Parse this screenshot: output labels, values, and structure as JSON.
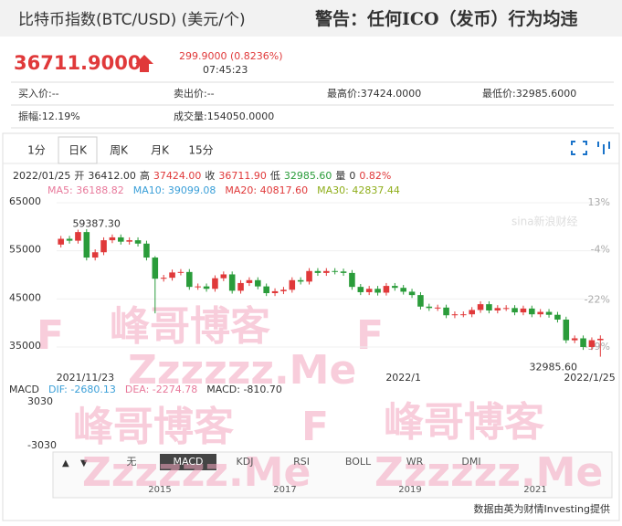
{
  "header": {
    "title": "比特币指数(BTC/USD) (美元/个)",
    "warning": "警告：任何ICO（发币）行为均违"
  },
  "quote": {
    "price": "36711.9000",
    "change": "299.9000 (0.8236%)",
    "time": "07:45:23"
  },
  "stats": [
    [
      "买入价:--",
      "卖出价:--",
      "最高价:37424.0000",
      "最低价:32985.6000"
    ],
    [
      "振幅:12.19%",
      "成交量:154050.0000"
    ]
  ],
  "tabs": [
    "1分",
    "日K",
    "周K",
    "月K",
    "15分"
  ],
  "info": [
    [
      "2022/01/25",
      ""
    ],
    [
      "开",
      "36412.00"
    ],
    [
      "高",
      "37424.00"
    ],
    [
      "收",
      "36711.90"
    ],
    [
      "低",
      "32985.60"
    ],
    [
      "量",
      "0"
    ],
    [
      "",
      "0.82%"
    ]
  ],
  "ma": [
    {
      "label": "MA5: 36188.82",
      "color": "#e8799b"
    },
    {
      "label": "MA10: 39099.08",
      "color": "#3a9fd8"
    },
    {
      "label": "MA20: 40817.60",
      "color": "#e0393a"
    },
    {
      "label": "MA30: 42837.44",
      "color": "#8fae1b"
    }
  ],
  "macd": [
    {
      "label": "MACD",
      "color": "#333"
    },
    {
      "label": "DIF: -2680.13",
      "color": "#3a9fd8"
    },
    {
      "label": "DEA: -2274.78",
      "color": "#e8799b"
    },
    {
      "label": "MACD: -810.70",
      "color": "#333"
    }
  ],
  "macd_ticks": [
    "3030",
    "-3030"
  ],
  "indicators": [
    "无",
    "MACD",
    "KDJ",
    "RSI",
    "BOLL",
    "WR",
    "DMI"
  ],
  "years": [
    "2015",
    "2017",
    "2019",
    "2021"
  ],
  "footer": "数据由英为财情Investing提供",
  "watermarks": [
    "峰哥博客",
    "Zzzzzz.Me",
    "F"
  ],
  "chart_data": {
    "type": "candlestick",
    "dates": [
      {
        "index": 0,
        "label": "2021/11/23"
      },
      {
        "index": 39,
        "label": "2022/1"
      },
      {
        "index": 63,
        "label": "2022/1/25"
      }
    ],
    "open": [
      56300,
      57500,
      57100,
      58900,
      53600,
      54700,
      57200,
      57800,
      56900,
      57200,
      56500,
      53600,
      49200,
      49400,
      50500,
      50600,
      47500,
      47600,
      47100,
      49300,
      50100,
      46700,
      48300,
      48900,
      47600,
      46200,
      46600,
      46900,
      48900,
      48600,
      50800,
      50400,
      50800,
      50700,
      50400,
      47500,
      46400,
      47100,
      46300,
      47700,
      47300,
      46500,
      45800,
      43400,
      43100,
      43200,
      41600,
      41800,
      41800,
      42700,
      43900,
      42600,
      43100,
      43100,
      42200,
      43000,
      41800,
      42300,
      41700,
      40700,
      36400,
      36800,
      35000,
      36412
    ],
    "close": [
      57500,
      57100,
      58900,
      53600,
      54700,
      57200,
      57800,
      56900,
      57200,
      56500,
      53600,
      49200,
      49400,
      50500,
      50600,
      47500,
      47600,
      47100,
      49300,
      50100,
      46700,
      48300,
      48900,
      47600,
      46200,
      46600,
      46900,
      48900,
      48600,
      50800,
      50400,
      50800,
      50700,
      50400,
      47500,
      46400,
      47100,
      46300,
      47700,
      47300,
      46500,
      45800,
      43400,
      43100,
      43200,
      41600,
      41800,
      41800,
      42700,
      43900,
      42600,
      43100,
      43100,
      42200,
      43000,
      41800,
      42300,
      41700,
      40700,
      36400,
      36800,
      35000,
      36412,
      36711.9
    ],
    "high": [
      58100,
      58100,
      59387.3,
      59500,
      55300,
      57800,
      58400,
      58400,
      57800,
      57800,
      57100,
      53900,
      50000,
      51100,
      51200,
      51200,
      48200,
      48200,
      49900,
      50700,
      50700,
      48900,
      49500,
      49500,
      48200,
      47200,
      47500,
      49500,
      49500,
      51400,
      51400,
      51400,
      51400,
      51300,
      51000,
      48100,
      47700,
      47700,
      48300,
      48300,
      47900,
      47100,
      46400,
      44000,
      43800,
      43800,
      42400,
      42400,
      43300,
      44500,
      44500,
      43700,
      43700,
      43700,
      43600,
      43600,
      42900,
      42900,
      42300,
      41300,
      37400,
      37400,
      37000,
      37424
    ],
    "low": [
      55700,
      56500,
      56500,
      53000,
      53000,
      54100,
      56600,
      56300,
      56300,
      55900,
      53000,
      42000,
      48600,
      48800,
      49900,
      46900,
      46900,
      46500,
      46500,
      48700,
      46100,
      46100,
      47700,
      47000,
      45600,
      45600,
      46000,
      46300,
      48000,
      48000,
      49800,
      49800,
      50100,
      49800,
      46900,
      45800,
      45800,
      45700,
      45700,
      46700,
      45900,
      45200,
      42800,
      42500,
      42500,
      41000,
      41000,
      41200,
      41200,
      42100,
      42000,
      42000,
      42500,
      41600,
      41600,
      41200,
      41200,
      41100,
      40100,
      35800,
      35800,
      34400,
      34400,
      32985.6
    ],
    "up_color": "#e0393a",
    "down_color": "#2a9c3a",
    "ylim": [
      30250,
      66900
    ],
    "yticks": [
      35000,
      45000,
      55000,
      65000
    ],
    "y2lim": [
      -47.2,
      16.3
    ],
    "y2ticks": [
      {
        "value": 13,
        "label": "13%"
      },
      {
        "value": -4,
        "label": "-4%"
      },
      {
        "value": -22,
        "label": "-22%"
      },
      {
        "value": -39,
        "label": "-39%"
      }
    ],
    "annotations": [
      {
        "value": 59387.3,
        "label": "59387.30"
      },
      {
        "value": 32985.6,
        "label": "32985.60"
      }
    ]
  }
}
